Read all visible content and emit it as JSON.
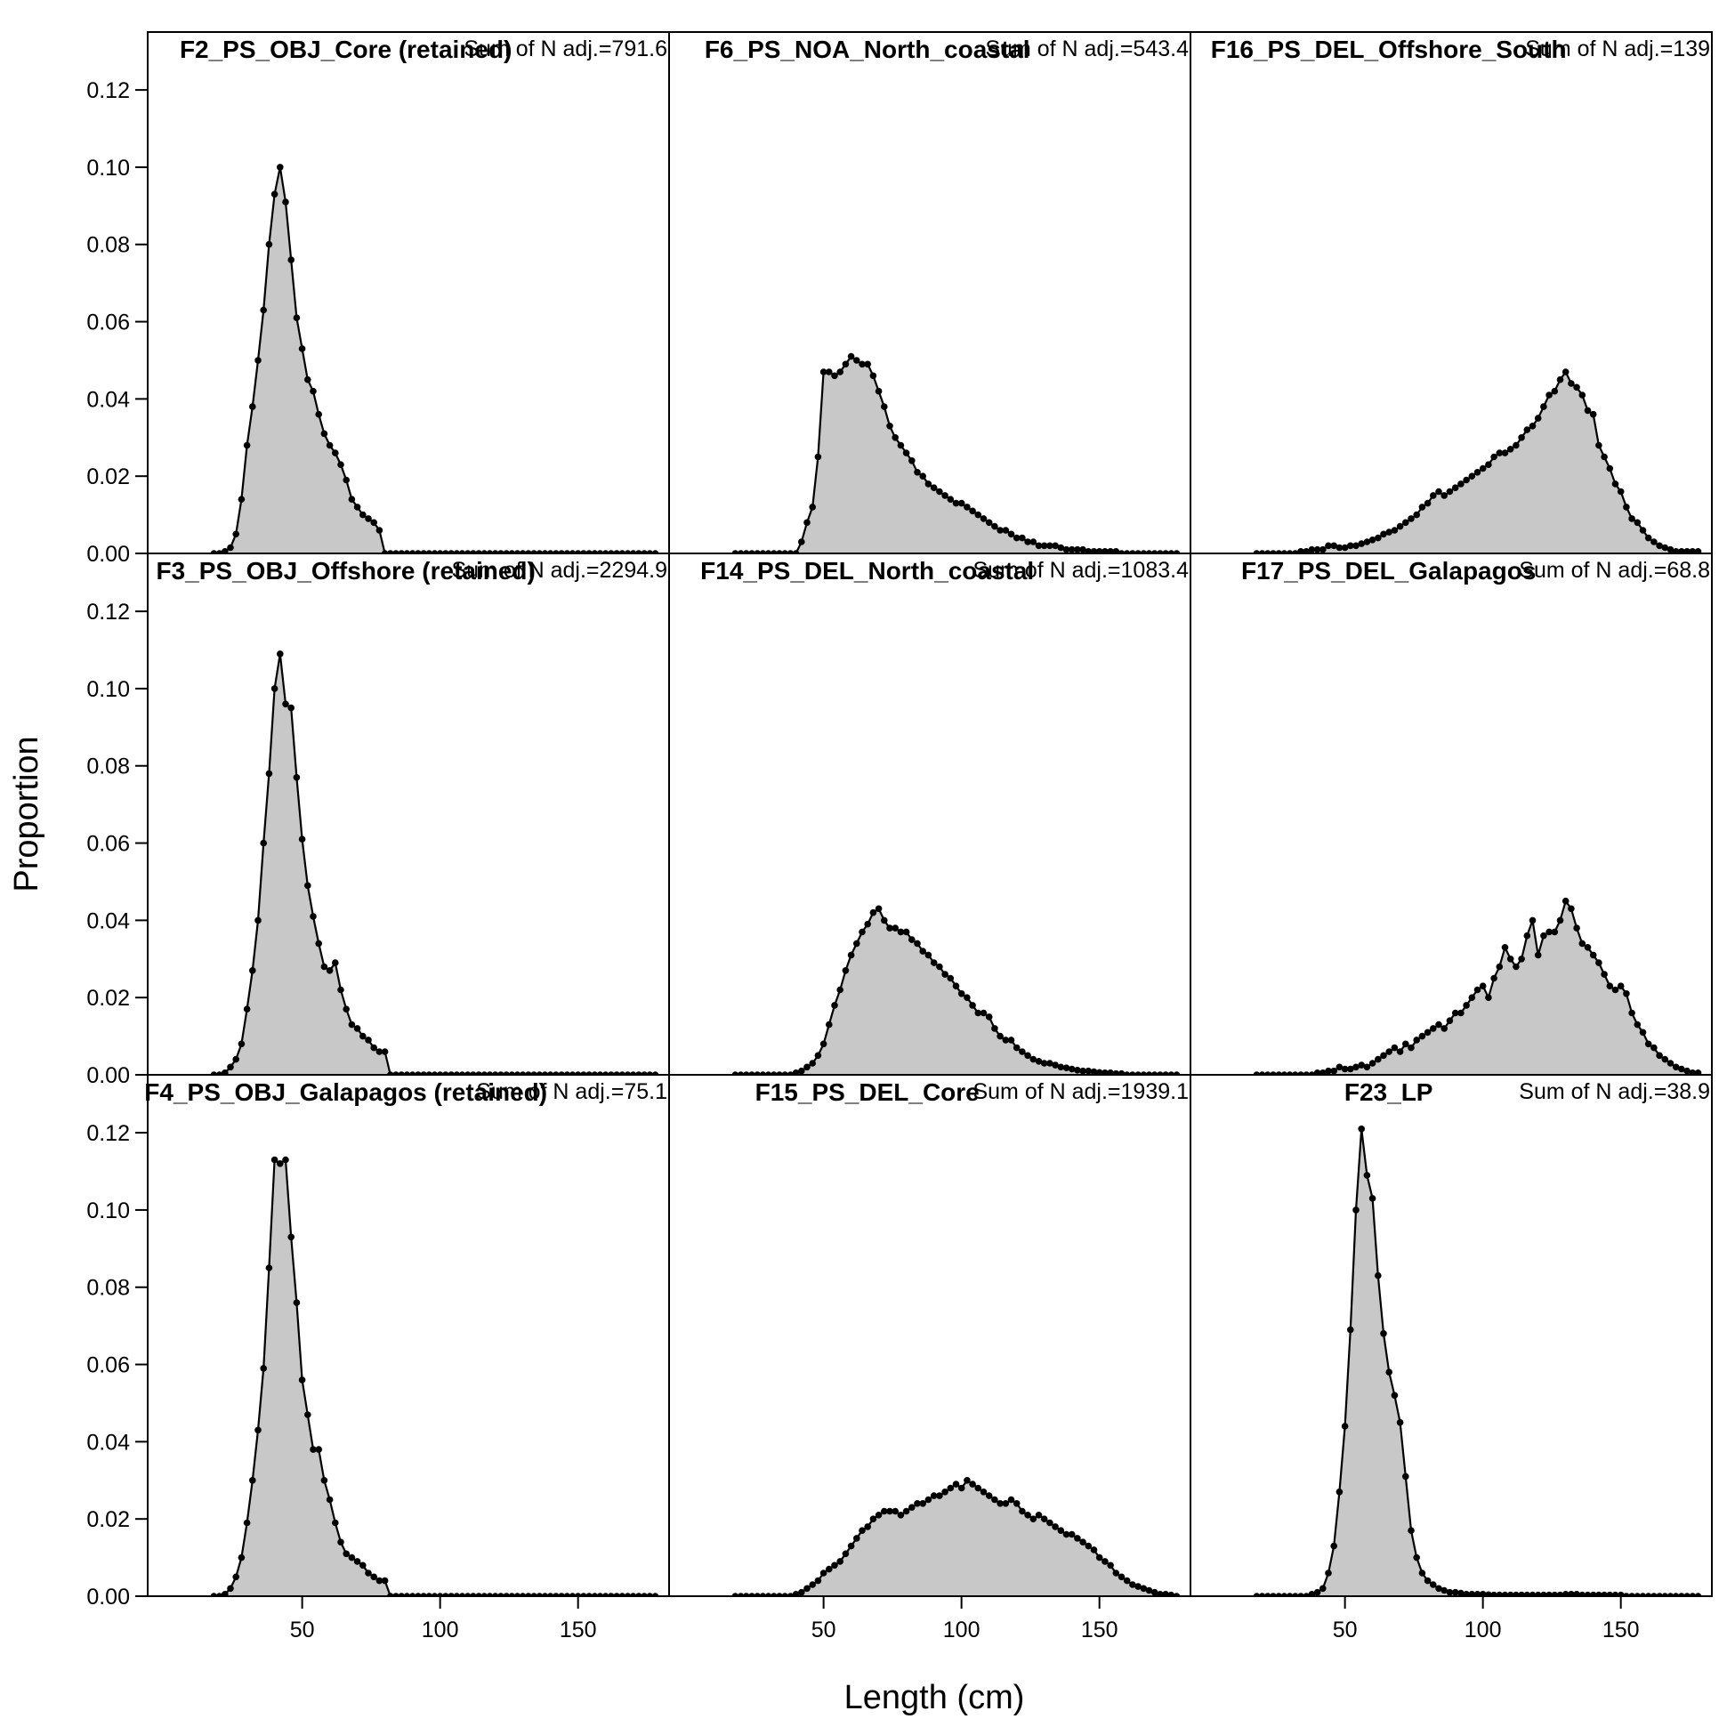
{
  "chart_data": {
    "type": "area",
    "xlabel": "Length (cm)",
    "ylabel": "Proportion",
    "xlim": [
      -6,
      183
    ],
    "ylim": [
      0,
      0.135
    ],
    "x_ticks": [
      "50",
      "100",
      "150"
    ],
    "y_ticks": [
      "0.00",
      "0.02",
      "0.04",
      "0.06",
      "0.08",
      "0.10",
      "0.12"
    ],
    "grid": false,
    "x": [
      18,
      20,
      22,
      24,
      26,
      28,
      30,
      32,
      34,
      36,
      38,
      40,
      42,
      44,
      46,
      48,
      50,
      52,
      54,
      56,
      58,
      60,
      62,
      64,
      66,
      68,
      70,
      72,
      74,
      76,
      78,
      80,
      82,
      84,
      86,
      88,
      90,
      92,
      94,
      96,
      98,
      100,
      102,
      104,
      106,
      108,
      110,
      112,
      114,
      116,
      118,
      120,
      122,
      124,
      126,
      128,
      130,
      132,
      134,
      136,
      138,
      140,
      142,
      144,
      146,
      148,
      150,
      152,
      154,
      156,
      158,
      160,
      162,
      164,
      166,
      168,
      170,
      172,
      174,
      176,
      178
    ],
    "panels": [
      {
        "title": "F2_PS_OBJ_Core (retained)",
        "sum_label": "Sum of N adj.=791.6",
        "values": [
          0,
          0,
          0.0005,
          0.0015,
          0.005,
          0.014,
          0.028,
          0.038,
          0.05,
          0.063,
          0.08,
          0.093,
          0.1,
          0.091,
          0.076,
          0.061,
          0.053,
          0.045,
          0.042,
          0.036,
          0.031,
          0.028,
          0.026,
          0.023,
          0.019,
          0.014,
          0.012,
          0.01,
          0.009,
          0.008,
          0.006,
          0,
          0,
          0,
          0,
          0,
          0,
          0,
          0,
          0,
          0,
          0,
          0,
          0,
          0,
          0,
          0,
          0,
          0,
          0,
          0,
          0,
          0,
          0,
          0,
          0,
          0,
          0,
          0,
          0,
          0,
          0,
          0,
          0,
          0,
          0,
          0,
          0,
          0,
          0,
          0,
          0,
          0,
          0,
          0,
          0,
          0,
          0,
          0,
          0,
          0
        ]
      },
      {
        "title": "F6_PS_NOA_North_coastal",
        "sum_label": "Sum of N adj.=543.4",
        "values": [
          0,
          0,
          0,
          0,
          0,
          0,
          0,
          0,
          0,
          0,
          0,
          0,
          0.003,
          0.008,
          0.012,
          0.025,
          0.047,
          0.047,
          0.046,
          0.047,
          0.049,
          0.051,
          0.05,
          0.049,
          0.049,
          0.046,
          0.042,
          0.038,
          0.033,
          0.03,
          0.028,
          0.026,
          0.024,
          0.021,
          0.02,
          0.018,
          0.017,
          0.016,
          0.015,
          0.014,
          0.013,
          0.013,
          0.012,
          0.011,
          0.01,
          0.009,
          0.008,
          0.007,
          0.006,
          0.006,
          0.005,
          0.004,
          0.004,
          0.003,
          0.003,
          0.002,
          0.002,
          0.002,
          0.002,
          0.0015,
          0.001,
          0.001,
          0.001,
          0.001,
          0.0005,
          0.0005,
          0.0005,
          0.0005,
          0.0005,
          0.0005,
          0,
          0,
          0,
          0,
          0,
          0,
          0,
          0,
          0,
          0,
          0
        ]
      },
      {
        "title": "F16_PS_DEL_Offshore_South",
        "sum_label": "Sum of N adj.=139",
        "values": [
          0,
          0,
          0,
          0,
          0,
          0,
          0,
          0,
          0.0005,
          0.0005,
          0.001,
          0.001,
          0.001,
          0.002,
          0.002,
          0.0015,
          0.0015,
          0.002,
          0.002,
          0.0025,
          0.003,
          0.0035,
          0.004,
          0.005,
          0.0055,
          0.006,
          0.007,
          0.008,
          0.009,
          0.01,
          0.012,
          0.013,
          0.015,
          0.016,
          0.015,
          0.016,
          0.017,
          0.018,
          0.019,
          0.02,
          0.021,
          0.022,
          0.023,
          0.025,
          0.026,
          0.026,
          0.027,
          0.028,
          0.03,
          0.032,
          0.033,
          0.035,
          0.038,
          0.041,
          0.042,
          0.045,
          0.047,
          0.044,
          0.043,
          0.041,
          0.037,
          0.036,
          0.028,
          0.025,
          0.022,
          0.018,
          0.016,
          0.012,
          0.009,
          0.008,
          0.006,
          0.004,
          0.003,
          0.002,
          0.0015,
          0.001,
          0.0005,
          0.0005,
          0.0005,
          0.0005,
          0.0005
        ]
      },
      {
        "title": "F3_PS_OBJ_Offshore (retained)",
        "sum_label": "Sum of N adj.=2294.9",
        "values": [
          0,
          0,
          0.0005,
          0.002,
          0.004,
          0.008,
          0.017,
          0.027,
          0.04,
          0.06,
          0.078,
          0.1,
          0.109,
          0.096,
          0.095,
          0.077,
          0.061,
          0.049,
          0.041,
          0.034,
          0.028,
          0.027,
          0.029,
          0.022,
          0.017,
          0.013,
          0.012,
          0.01,
          0.009,
          0.007,
          0.006,
          0.006,
          0,
          0,
          0,
          0,
          0,
          0,
          0,
          0,
          0,
          0,
          0,
          0,
          0,
          0,
          0,
          0,
          0,
          0,
          0,
          0,
          0,
          0,
          0,
          0,
          0,
          0,
          0,
          0,
          0,
          0,
          0,
          0,
          0,
          0,
          0,
          0,
          0,
          0,
          0,
          0,
          0,
          0,
          0,
          0,
          0,
          0,
          0,
          0,
          0
        ]
      },
      {
        "title": "F14_PS_DEL_North_coastal",
        "sum_label": "Sum of N adj.=1083.4",
        "values": [
          0,
          0,
          0,
          0,
          0,
          0,
          0,
          0,
          0,
          0,
          0,
          0.0005,
          0.001,
          0.002,
          0.003,
          0.005,
          0.008,
          0.013,
          0.018,
          0.022,
          0.027,
          0.031,
          0.034,
          0.037,
          0.039,
          0.042,
          0.043,
          0.04,
          0.038,
          0.038,
          0.037,
          0.037,
          0.035,
          0.034,
          0.032,
          0.031,
          0.029,
          0.028,
          0.026,
          0.025,
          0.023,
          0.021,
          0.02,
          0.018,
          0.016,
          0.016,
          0.015,
          0.012,
          0.01,
          0.009,
          0.009,
          0.007,
          0.006,
          0.005,
          0.004,
          0.0035,
          0.003,
          0.003,
          0.0025,
          0.002,
          0.0018,
          0.0015,
          0.0012,
          0.001,
          0.001,
          0.0008,
          0.0006,
          0.0005,
          0.0005,
          0.0003,
          0.0003,
          0,
          0,
          0,
          0,
          0,
          0,
          0,
          0,
          0,
          0
        ]
      },
      {
        "title": "F17_PS_DEL_Galapagos",
        "sum_label": "Sum of N adj.=68.8",
        "values": [
          0,
          0,
          0,
          0,
          0,
          0,
          0,
          0,
          0,
          0,
          0,
          0.0005,
          0.0005,
          0.001,
          0.001,
          0.002,
          0.0015,
          0.0015,
          0.002,
          0.0025,
          0.002,
          0.003,
          0.004,
          0.005,
          0.006,
          0.007,
          0.006,
          0.008,
          0.007,
          0.009,
          0.01,
          0.011,
          0.012,
          0.013,
          0.012,
          0.014,
          0.016,
          0.016,
          0.018,
          0.02,
          0.022,
          0.023,
          0.02,
          0.025,
          0.028,
          0.033,
          0.03,
          0.028,
          0.03,
          0.036,
          0.04,
          0.031,
          0.036,
          0.037,
          0.037,
          0.04,
          0.045,
          0.043,
          0.038,
          0.034,
          0.033,
          0.031,
          0.029,
          0.026,
          0.023,
          0.022,
          0.023,
          0.021,
          0.016,
          0.013,
          0.011,
          0.008,
          0.007,
          0.005,
          0.004,
          0.003,
          0.002,
          0.0015,
          0.001,
          0.0005,
          0.0005
        ]
      },
      {
        "title": "F4_PS_OBJ_Galapagos (retained)",
        "sum_label": "Sum of N adj.=75.1",
        "values": [
          0,
          0,
          0.0005,
          0.002,
          0.005,
          0.01,
          0.019,
          0.03,
          0.043,
          0.059,
          0.085,
          0.113,
          0.112,
          0.113,
          0.093,
          0.076,
          0.056,
          0.047,
          0.038,
          0.038,
          0.03,
          0.025,
          0.019,
          0.014,
          0.011,
          0.01,
          0.009,
          0.008,
          0.006,
          0.005,
          0.004,
          0.004,
          0,
          0,
          0,
          0,
          0,
          0,
          0,
          0,
          0,
          0,
          0,
          0,
          0,
          0,
          0,
          0,
          0,
          0,
          0,
          0,
          0,
          0,
          0,
          0,
          0,
          0,
          0,
          0,
          0,
          0,
          0,
          0,
          0,
          0,
          0,
          0,
          0,
          0,
          0,
          0,
          0,
          0,
          0,
          0,
          0,
          0,
          0,
          0,
          0
        ]
      },
      {
        "title": "F15_PS_DEL_Core",
        "sum_label": "Sum of N adj.=1939.1",
        "values": [
          0,
          0,
          0,
          0,
          0,
          0,
          0,
          0,
          0,
          0,
          0,
          0.0005,
          0.001,
          0.002,
          0.003,
          0.004,
          0.006,
          0.007,
          0.008,
          0.009,
          0.011,
          0.013,
          0.015,
          0.017,
          0.018,
          0.02,
          0.021,
          0.022,
          0.022,
          0.022,
          0.021,
          0.022,
          0.023,
          0.024,
          0.024,
          0.025,
          0.026,
          0.026,
          0.027,
          0.028,
          0.029,
          0.028,
          0.03,
          0.029,
          0.028,
          0.027,
          0.026,
          0.025,
          0.024,
          0.024,
          0.025,
          0.024,
          0.022,
          0.021,
          0.02,
          0.021,
          0.02,
          0.019,
          0.018,
          0.017,
          0.016,
          0.016,
          0.015,
          0.014,
          0.013,
          0.012,
          0.01,
          0.009,
          0.008,
          0.006,
          0.005,
          0.004,
          0.003,
          0.0025,
          0.002,
          0.0015,
          0.001,
          0.0005,
          0.0005,
          0.0003,
          0
        ]
      },
      {
        "title": "F23_LP",
        "sum_label": "Sum of N adj.=38.9",
        "values": [
          0,
          0,
          0,
          0,
          0,
          0,
          0,
          0,
          0,
          0,
          0.0005,
          0.001,
          0.002,
          0.006,
          0.013,
          0.027,
          0.044,
          0.069,
          0.1,
          0.121,
          0.109,
          0.103,
          0.083,
          0.068,
          0.058,
          0.052,
          0.045,
          0.031,
          0.017,
          0.01,
          0.006,
          0.004,
          0.003,
          0.002,
          0.0015,
          0.001,
          0.001,
          0.0008,
          0.0005,
          0.0005,
          0.0005,
          0.0005,
          0.0004,
          0.0003,
          0.0003,
          0.0003,
          0.0003,
          0.0003,
          0.0003,
          0.0003,
          0.0003,
          0.0003,
          0.0003,
          0.0003,
          0.0003,
          0.0003,
          0.0005,
          0.0005,
          0.0005,
          0.0003,
          0.0003,
          0.0003,
          0.0003,
          0.0003,
          0.0003,
          0.0003,
          0.0003,
          0,
          0,
          0,
          0,
          0,
          0,
          0,
          0,
          0,
          0,
          0,
          0,
          0,
          0
        ]
      }
    ]
  }
}
